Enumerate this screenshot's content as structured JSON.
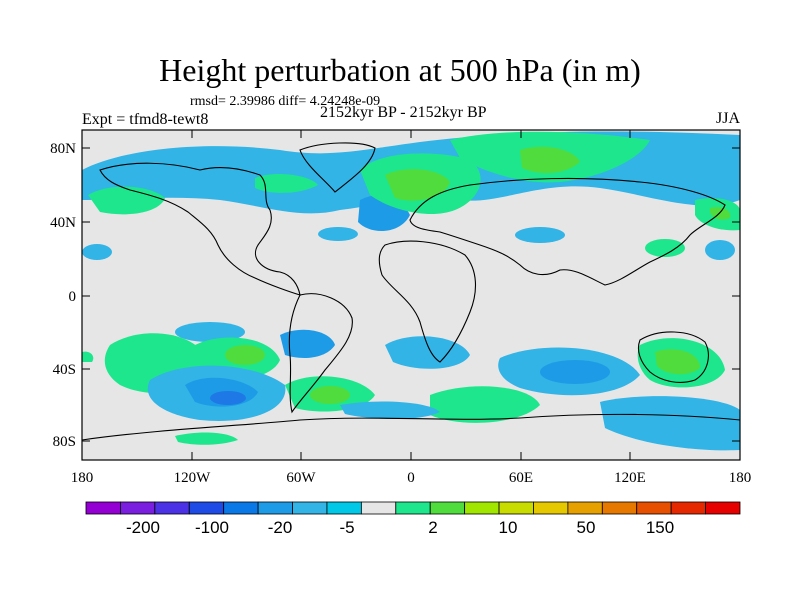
{
  "title": "Height perturbation at 500 hPa (in m)",
  "stats": "rmsd= 2.39986 diff= 4.24248e-09",
  "experiment": "Expt = tfmd8-tewt8",
  "period": "2152kyr BP - 2152kyr BP",
  "season": "JJA",
  "map": {
    "lat_ticks": [
      "80N",
      "40N",
      "0",
      "40S",
      "80S"
    ],
    "lon_ticks": [
      "180",
      "120W",
      "60W",
      "0",
      "60E",
      "120E",
      "180"
    ],
    "ocean_fill": "#e6e6e6"
  },
  "colorbar": {
    "colors": [
      "#9400d3",
      "#7a1ee0",
      "#4b32e6",
      "#1e4be6",
      "#0a78e6",
      "#1e9be6",
      "#32b4e6",
      "#00c8e6",
      "#e6e6e6",
      "#1ee68c",
      "#50dc3c",
      "#a0e600",
      "#c8dc00",
      "#e6c800",
      "#e6a000",
      "#e67800",
      "#e65000",
      "#e62800",
      "#e60000"
    ],
    "labels": [
      "-200",
      "-100",
      "-20",
      "-5",
      "2",
      "10",
      "50",
      "150"
    ]
  }
}
